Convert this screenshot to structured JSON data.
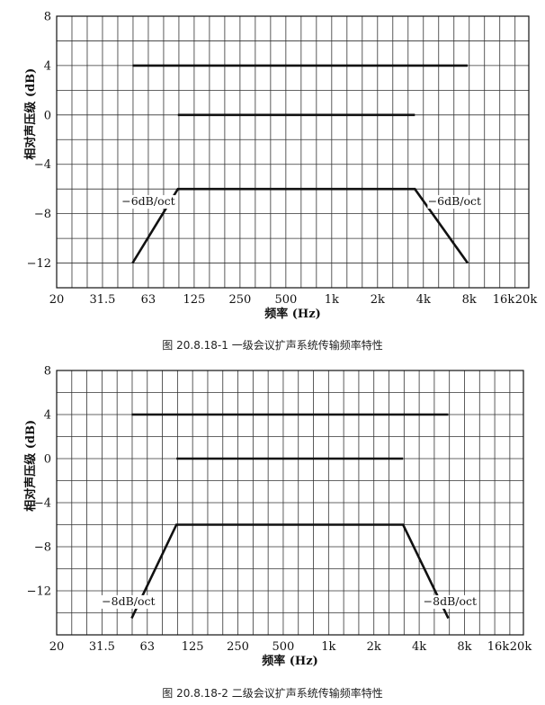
{
  "chart_data": [
    {
      "type": "line",
      "ylabel": "相对声压级 (dB)",
      "xlabel": "频率 (Hz)",
      "x_tick_labels": [
        "20",
        "31.5",
        "63",
        "125",
        "250",
        "500",
        "1k",
        "2k",
        "4k",
        "8k",
        "16k",
        "20k"
      ],
      "y_ticks": [
        8,
        4,
        0,
        -4,
        -8,
        -12
      ],
      "ylim": [
        -14,
        8
      ],
      "xlim_octaves": [
        0,
        10.3
      ],
      "grid": true,
      "series": [
        {
          "points": [
            [
              63,
              4
            ],
            [
              10000,
              4
            ]
          ]
        },
        {
          "points": [
            [
              125,
              0
            ],
            [
              4500,
              0
            ]
          ]
        },
        {
          "points": [
            [
              63,
              -12
            ],
            [
              125,
              -6
            ],
            [
              4500,
              -6
            ],
            [
              10000,
              -12
            ]
          ]
        }
      ],
      "annotations": [
        {
          "text": "−6dB/oct",
          "x": 80,
          "y": -7.3
        },
        {
          "text": "−6dB/oct",
          "x": 8200,
          "y": -7.3
        }
      ],
      "caption": "图 20.8.18-1 一级会议扩声系统传输频率特性"
    },
    {
      "type": "line",
      "ylabel": "相对声压级 (dB)",
      "xlabel": "频率 (Hz)",
      "x_tick_labels": [
        "20",
        "31.5",
        "63",
        "125",
        "250",
        "500",
        "1k",
        "2k",
        "4k",
        "8k",
        "16k",
        "20k"
      ],
      "y_ticks": [
        8,
        4,
        0,
        -4,
        -8,
        -12
      ],
      "ylim": [
        -16,
        8
      ],
      "xlim_octaves": [
        0,
        10.3
      ],
      "grid": true,
      "series": [
        {
          "points": [
            [
              63,
              4
            ],
            [
              8000,
              4
            ]
          ]
        },
        {
          "points": [
            [
              125,
              0
            ],
            [
              4000,
              0
            ]
          ]
        },
        {
          "points": [
            [
              63,
              -14.5
            ],
            [
              125,
              -6
            ],
            [
              4000,
              -6
            ],
            [
              8000,
              -14.5
            ]
          ]
        }
      ],
      "annotations": [
        {
          "text": "−8dB/oct",
          "x": 60,
          "y": -13.3
        },
        {
          "text": "−8dB/oct",
          "x": 8200,
          "y": -13.3
        }
      ],
      "caption": "图 20.8.18-2 二级会议扩声系统传输频率特性"
    }
  ]
}
